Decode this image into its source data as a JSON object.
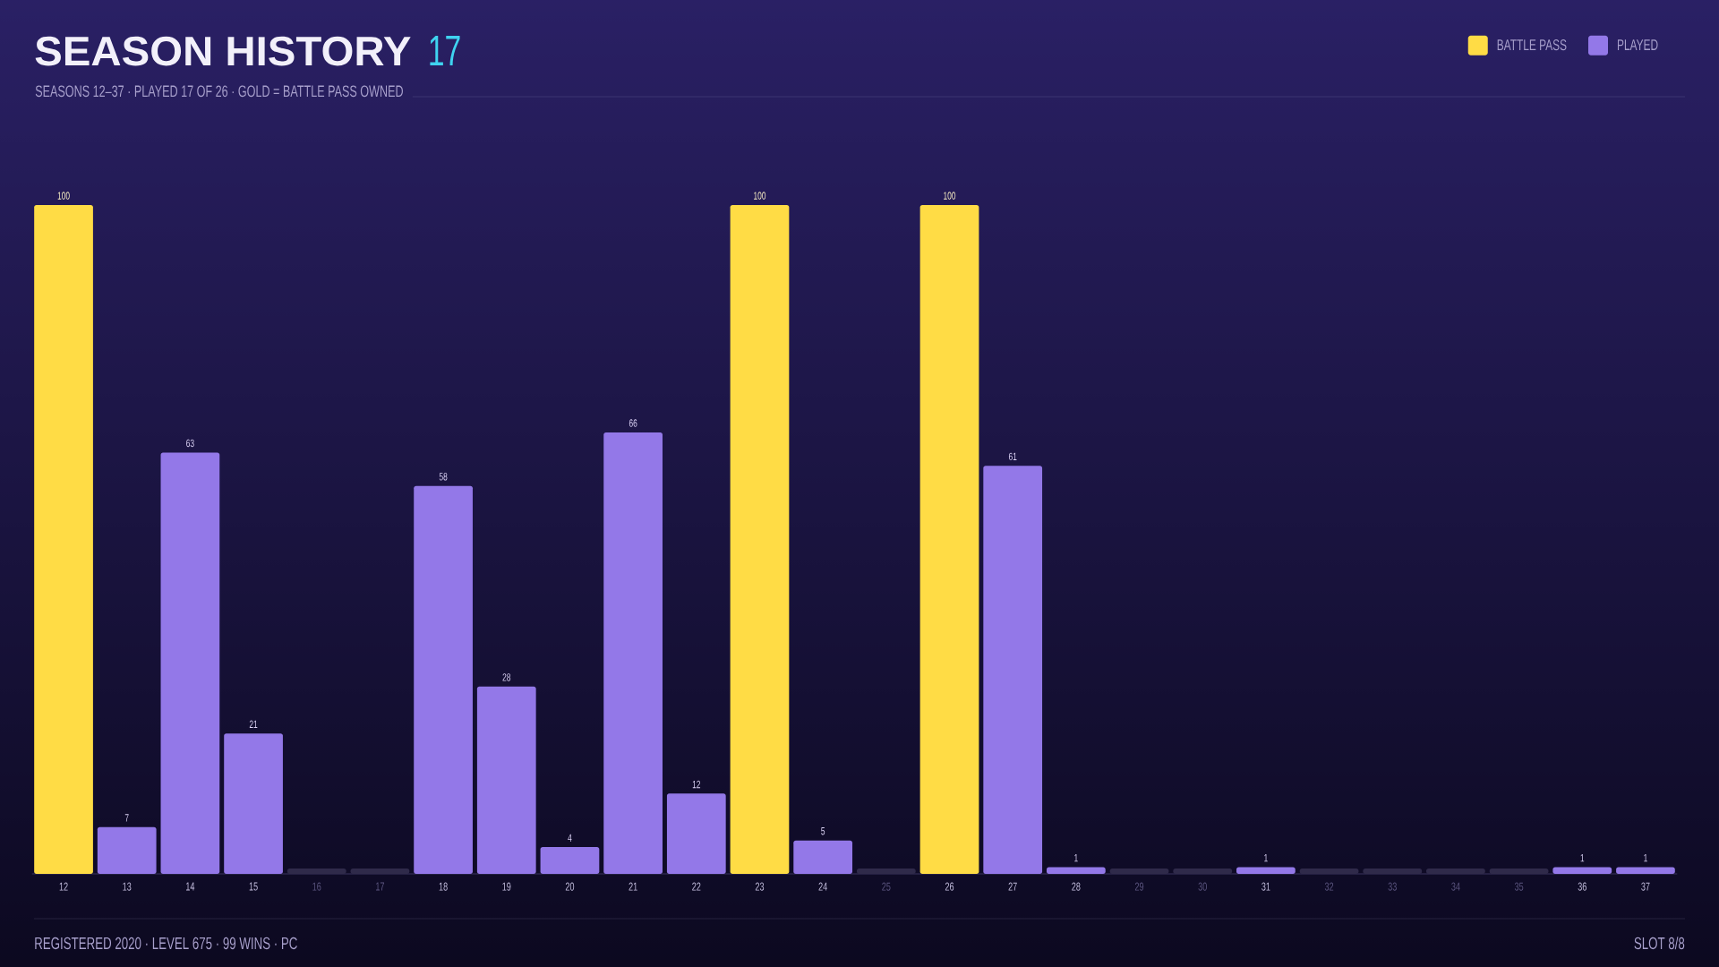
{
  "chart_data": {
    "type": "bar",
    "title": "SEASON HISTORY",
    "subtitle": "SEASONS 12–37 · PLAYED 17 OF 26 · GOLD = BATTLE PASS OWNED",
    "categories": [
      "12",
      "13",
      "14",
      "15",
      "16",
      "17",
      "18",
      "19",
      "20",
      "21",
      "22",
      "23",
      "24",
      "25",
      "26",
      "27",
      "28",
      "29",
      "30",
      "31",
      "32",
      "33",
      "34",
      "35",
      "36",
      "37"
    ],
    "series": [
      {
        "name": "BATTLE PASS",
        "color": "#ffdc45",
        "values": [
          100,
          null,
          null,
          null,
          null,
          null,
          null,
          null,
          null,
          null,
          null,
          100,
          null,
          null,
          100,
          null,
          null,
          null,
          null,
          null,
          null,
          null,
          null,
          null,
          null,
          null
        ],
        "value_labels": [
          "100",
          null,
          null,
          null,
          null,
          null,
          null,
          null,
          null,
          null,
          null,
          "100",
          null,
          null,
          "100",
          null,
          null,
          null,
          null,
          null,
          null,
          null,
          null,
          null,
          null,
          null
        ]
      },
      {
        "name": "PLAYED",
        "color": "#9378e8",
        "values": [
          null,
          7,
          63,
          21,
          null,
          null,
          58,
          28,
          4,
          66,
          12,
          null,
          5,
          null,
          null,
          61,
          1,
          null,
          null,
          1,
          null,
          null,
          null,
          null,
          1,
          1
        ],
        "value_labels": [
          null,
          "7",
          "63",
          "21",
          null,
          null,
          "58",
          "28",
          "4",
          "66",
          "12",
          null,
          "5",
          null,
          null,
          "61",
          "1",
          null,
          null,
          "1",
          null,
          null,
          null,
          null,
          "1",
          "1"
        ]
      },
      {
        "color": "#2f2a4a",
        "values": [
          null,
          null,
          null,
          null,
          0.8,
          0.8,
          null,
          null,
          null,
          null,
          null,
          null,
          null,
          0.8,
          null,
          null,
          null,
          0.8,
          0.8,
          null,
          0.8,
          0.8,
          0.8,
          0.8,
          null,
          null
        ]
      }
    ],
    "legend": "top right",
    "tick_labels": "x",
    "annotations": [
      "17",
      "REGISTERED 2020 · LEVEL 675 · 99 WINS · PC",
      "SLOT 8/8"
    ]
  }
}
